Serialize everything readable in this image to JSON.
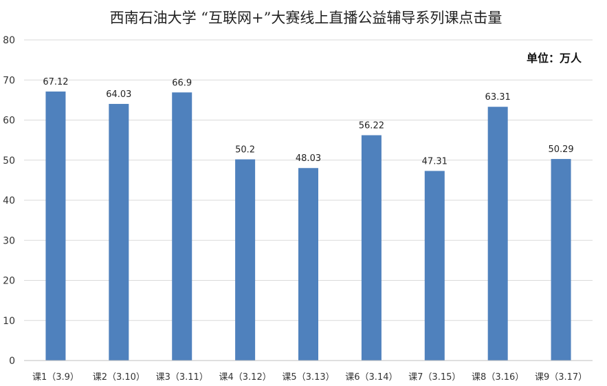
{
  "chart_data": {
    "type": "bar",
    "title": "西南石油大学 “互联网+”大赛线上直播公益辅导系列课点击量",
    "unit_label": "单位：万人",
    "categories": [
      "课1（3.9）",
      "课2（3.10）",
      "课3（3.11）",
      "课4（3.12）",
      "课5（3.13）",
      "课6（3.14）",
      "课7（3.15）",
      "课8（3.16）",
      "课9（3.17）"
    ],
    "values": [
      67.12,
      64.03,
      66.9,
      50.2,
      48.03,
      56.22,
      47.31,
      63.31,
      50.29
    ],
    "data_labels": [
      "67.12",
      "64.03",
      "66.9",
      "50.2",
      "48.03",
      "56.22",
      "47.31",
      "63.31",
      "50.29"
    ],
    "ylim": [
      0,
      80
    ],
    "yticks": [
      "0",
      "10",
      "20",
      "30",
      "40",
      "50",
      "60",
      "70",
      "80"
    ],
    "grid": true,
    "legend": "none",
    "bar_color": "#4f81bd"
  }
}
